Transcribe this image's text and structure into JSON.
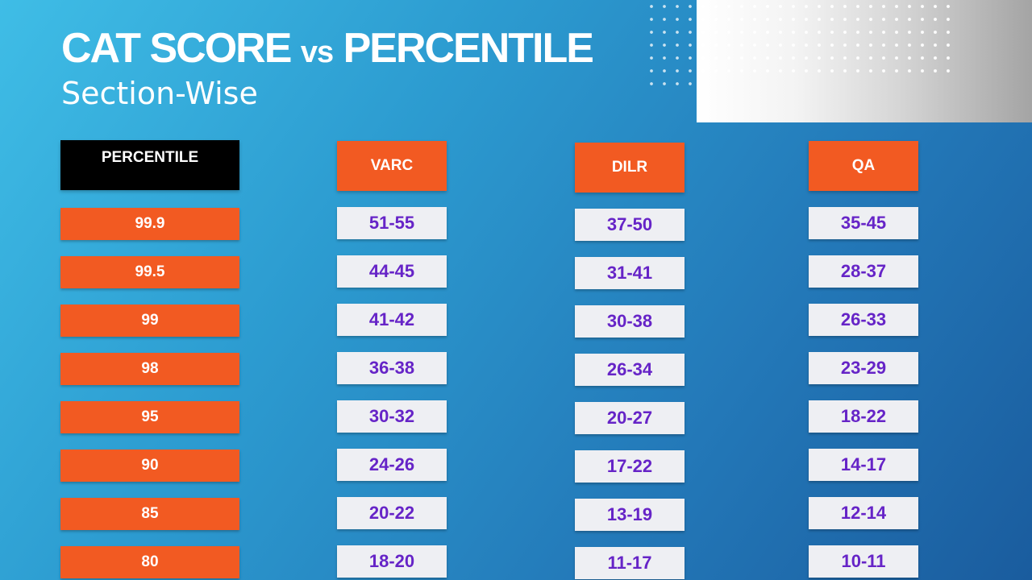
{
  "title": {
    "main_left": "CAT SCORE",
    "vs": "vs",
    "main_right": "PERCENTILE",
    "subtitle": "Section-Wise"
  },
  "chart_data": {
    "type": "table",
    "columns": [
      "PERCENTILE",
      "VARC",
      "DILR",
      "QA"
    ],
    "rows": [
      {
        "percentile": "99.9",
        "VARC": "51-55",
        "DILR": "37-50",
        "QA": "35-45"
      },
      {
        "percentile": "99.5",
        "VARC": "44-45",
        "DILR": "31-41",
        "QA": "28-37"
      },
      {
        "percentile": "99",
        "VARC": "41-42",
        "DILR": "30-38",
        "QA": "26-33"
      },
      {
        "percentile": "98",
        "VARC": "36-38",
        "DILR": "26-34",
        "QA": "23-29"
      },
      {
        "percentile": "95",
        "VARC": "30-32",
        "DILR": "20-27",
        "QA": "18-22"
      },
      {
        "percentile": "90",
        "VARC": "24-26",
        "DILR": "17-22",
        "QA": "14-17"
      },
      {
        "percentile": "85",
        "VARC": "20-22",
        "DILR": "13-19",
        "QA": "12-14"
      },
      {
        "percentile": "80",
        "VARC": "18-20",
        "DILR": "11-17",
        "QA": "10-11"
      }
    ]
  },
  "colors": {
    "accent_orange": "#f25a22",
    "header_black": "#000000",
    "score_text": "#6624c7",
    "score_cell_bg": "#eeeff3"
  }
}
